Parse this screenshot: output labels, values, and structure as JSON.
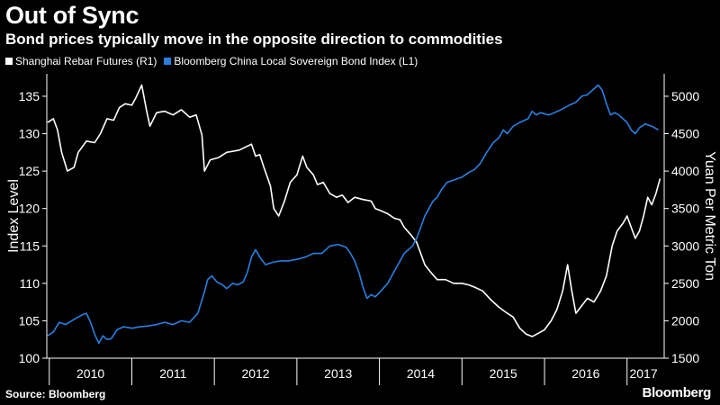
{
  "header": {
    "title": "Out of Sync",
    "subtitle": "Bond prices typically move in the opposite direction to commodities"
  },
  "footer": {
    "source": "Source: Bloomberg",
    "brand": "Bloomberg"
  },
  "colors": {
    "background": "#000000",
    "rebar": "#ffffff",
    "bond": "#2a7fe0",
    "axis": "#ffffff"
  },
  "chart_data": {
    "type": "line",
    "title": "Out of Sync",
    "subtitle": "Bond prices typically move in the opposite direction to commodities",
    "ylabel": "Index Level",
    "y2label": "Yuan Per Metric Ton",
    "ylim": [
      100,
      138
    ],
    "y2lim": [
      1500,
      5300
    ],
    "xlim": [
      2009.97,
      2017.45
    ],
    "yticks": [
      100,
      105,
      110,
      115,
      120,
      125,
      130,
      135
    ],
    "y2ticks": [
      1500,
      2000,
      2500,
      3000,
      3500,
      4000,
      4500,
      5000
    ],
    "xticks": [
      {
        "label": "2010",
        "pos": 2010.5,
        "sep": 2010.0
      },
      {
        "label": "2011",
        "pos": 2011.5,
        "sep": 2011.0
      },
      {
        "label": "2012",
        "pos": 2012.5,
        "sep": 2012.0
      },
      {
        "label": "2013",
        "pos": 2013.5,
        "sep": 2013.0
      },
      {
        "label": "2014",
        "pos": 2014.5,
        "sep": 2014.0
      },
      {
        "label": "2015",
        "pos": 2015.5,
        "sep": 2015.0
      },
      {
        "label": "2016",
        "pos": 2016.5,
        "sep": 2016.0
      },
      {
        "label": "2017",
        "pos": 2017.2,
        "sep": 2017.0
      }
    ],
    "series": [
      {
        "name": "Shanghai Rebar Futures (R1)",
        "axis": "right",
        "legend_label": "Shanghai Rebar Futures (R1)",
        "points": [
          [
            2009.98,
            4650
          ],
          [
            2010.05,
            4700
          ],
          [
            2010.1,
            4550
          ],
          [
            2010.15,
            4250
          ],
          [
            2010.22,
            4000
          ],
          [
            2010.3,
            4050
          ],
          [
            2010.35,
            4250
          ],
          [
            2010.45,
            4400
          ],
          [
            2010.55,
            4380
          ],
          [
            2010.62,
            4500
          ],
          [
            2010.7,
            4700
          ],
          [
            2010.78,
            4680
          ],
          [
            2010.85,
            4850
          ],
          [
            2010.92,
            4900
          ],
          [
            2011.0,
            4880
          ],
          [
            2011.05,
            4980
          ],
          [
            2011.12,
            5150
          ],
          [
            2011.18,
            4800
          ],
          [
            2011.22,
            4600
          ],
          [
            2011.3,
            4780
          ],
          [
            2011.4,
            4800
          ],
          [
            2011.5,
            4750
          ],
          [
            2011.6,
            4820
          ],
          [
            2011.7,
            4720
          ],
          [
            2011.78,
            4750
          ],
          [
            2011.85,
            4480
          ],
          [
            2011.88,
            4000
          ],
          [
            2011.95,
            4150
          ],
          [
            2012.05,
            4180
          ],
          [
            2012.15,
            4250
          ],
          [
            2012.3,
            4280
          ],
          [
            2012.45,
            4360
          ],
          [
            2012.5,
            4200
          ],
          [
            2012.55,
            4220
          ],
          [
            2012.6,
            4050
          ],
          [
            2012.68,
            3800
          ],
          [
            2012.72,
            3500
          ],
          [
            2012.78,
            3400
          ],
          [
            2012.85,
            3600
          ],
          [
            2012.92,
            3850
          ],
          [
            2013.0,
            3950
          ],
          [
            2013.07,
            4200
          ],
          [
            2013.12,
            4050
          ],
          [
            2013.2,
            3950
          ],
          [
            2013.25,
            3820
          ],
          [
            2013.32,
            3850
          ],
          [
            2013.4,
            3700
          ],
          [
            2013.48,
            3650
          ],
          [
            2013.55,
            3680
          ],
          [
            2013.62,
            3580
          ],
          [
            2013.7,
            3650
          ],
          [
            2013.8,
            3620
          ],
          [
            2013.9,
            3600
          ],
          [
            2013.95,
            3500
          ],
          [
            2014.02,
            3470
          ],
          [
            2014.1,
            3430
          ],
          [
            2014.18,
            3370
          ],
          [
            2014.25,
            3350
          ],
          [
            2014.3,
            3250
          ],
          [
            2014.38,
            3150
          ],
          [
            2014.45,
            3050
          ],
          [
            2014.5,
            2900
          ],
          [
            2014.55,
            2750
          ],
          [
            2014.62,
            2650
          ],
          [
            2014.7,
            2550
          ],
          [
            2014.8,
            2550
          ],
          [
            2014.9,
            2500
          ],
          [
            2015.0,
            2500
          ],
          [
            2015.08,
            2480
          ],
          [
            2015.15,
            2450
          ],
          [
            2015.25,
            2400
          ],
          [
            2015.35,
            2280
          ],
          [
            2015.45,
            2180
          ],
          [
            2015.55,
            2100
          ],
          [
            2015.62,
            2050
          ],
          [
            2015.7,
            1900
          ],
          [
            2015.78,
            1820
          ],
          [
            2015.85,
            1790
          ],
          [
            2015.92,
            1830
          ],
          [
            2016.0,
            1880
          ],
          [
            2016.08,
            2000
          ],
          [
            2016.15,
            2150
          ],
          [
            2016.22,
            2400
          ],
          [
            2016.28,
            2750
          ],
          [
            2016.33,
            2400
          ],
          [
            2016.38,
            2100
          ],
          [
            2016.45,
            2200
          ],
          [
            2016.52,
            2300
          ],
          [
            2016.6,
            2250
          ],
          [
            2016.68,
            2400
          ],
          [
            2016.75,
            2600
          ],
          [
            2016.82,
            3000
          ],
          [
            2016.88,
            3200
          ],
          [
            2016.95,
            3300
          ],
          [
            2017.0,
            3400
          ],
          [
            2017.05,
            3250
          ],
          [
            2017.1,
            3100
          ],
          [
            2017.15,
            3200
          ],
          [
            2017.2,
            3400
          ],
          [
            2017.25,
            3650
          ],
          [
            2017.3,
            3550
          ],
          [
            2017.35,
            3700
          ],
          [
            2017.4,
            3900
          ]
        ]
      },
      {
        "name": "Bloomberg China Local Sovereign Bond Index (L1)",
        "axis": "left",
        "legend_label": "Bloomberg China Local Sovereign Bond Index (L1)",
        "points": [
          [
            2009.98,
            103.0
          ],
          [
            2010.05,
            103.5
          ],
          [
            2010.12,
            104.8
          ],
          [
            2010.2,
            104.5
          ],
          [
            2010.3,
            105.2
          ],
          [
            2010.4,
            105.8
          ],
          [
            2010.45,
            106.0
          ],
          [
            2010.5,
            104.8
          ],
          [
            2010.55,
            103.2
          ],
          [
            2010.6,
            102.0
          ],
          [
            2010.65,
            103.0
          ],
          [
            2010.7,
            102.5
          ],
          [
            2010.75,
            102.6
          ],
          [
            2010.82,
            103.8
          ],
          [
            2010.9,
            104.2
          ],
          [
            2011.0,
            104.0
          ],
          [
            2011.1,
            104.2
          ],
          [
            2011.2,
            104.3
          ],
          [
            2011.3,
            104.5
          ],
          [
            2011.4,
            104.8
          ],
          [
            2011.5,
            104.5
          ],
          [
            2011.6,
            105.0
          ],
          [
            2011.7,
            104.8
          ],
          [
            2011.8,
            106.0
          ],
          [
            2011.87,
            108.5
          ],
          [
            2011.92,
            110.5
          ],
          [
            2011.97,
            111.0
          ],
          [
            2012.03,
            110.2
          ],
          [
            2012.1,
            109.8
          ],
          [
            2012.15,
            109.3
          ],
          [
            2012.22,
            110.0
          ],
          [
            2012.28,
            109.8
          ],
          [
            2012.35,
            110.2
          ],
          [
            2012.4,
            111.5
          ],
          [
            2012.45,
            113.5
          ],
          [
            2012.5,
            114.5
          ],
          [
            2012.55,
            113.5
          ],
          [
            2012.62,
            112.5
          ],
          [
            2012.7,
            112.8
          ],
          [
            2012.8,
            113.0
          ],
          [
            2012.9,
            113.0
          ],
          [
            2013.0,
            113.2
          ],
          [
            2013.1,
            113.5
          ],
          [
            2013.2,
            114.0
          ],
          [
            2013.3,
            114.0
          ],
          [
            2013.4,
            115.0
          ],
          [
            2013.5,
            115.2
          ],
          [
            2013.6,
            114.8
          ],
          [
            2013.65,
            114.0
          ],
          [
            2013.7,
            113.0
          ],
          [
            2013.75,
            111.5
          ],
          [
            2013.8,
            109.5
          ],
          [
            2013.85,
            108.0
          ],
          [
            2013.9,
            108.5
          ],
          [
            2013.95,
            108.2
          ],
          [
            2014.02,
            109.0
          ],
          [
            2014.1,
            110.0
          ],
          [
            2014.2,
            112.0
          ],
          [
            2014.3,
            114.0
          ],
          [
            2014.4,
            115.0
          ],
          [
            2014.45,
            116.0
          ],
          [
            2014.5,
            117.5
          ],
          [
            2014.55,
            119.0
          ],
          [
            2014.6,
            120.0
          ],
          [
            2014.65,
            121.0
          ],
          [
            2014.7,
            121.5
          ],
          [
            2014.75,
            122.5
          ],
          [
            2014.82,
            123.5
          ],
          [
            2014.9,
            123.8
          ],
          [
            2015.0,
            124.2
          ],
          [
            2015.08,
            124.8
          ],
          [
            2015.15,
            125.2
          ],
          [
            2015.22,
            126.0
          ],
          [
            2015.3,
            127.5
          ],
          [
            2015.38,
            128.8
          ],
          [
            2015.45,
            129.5
          ],
          [
            2015.5,
            130.5
          ],
          [
            2015.55,
            130.0
          ],
          [
            2015.62,
            131.0
          ],
          [
            2015.7,
            131.5
          ],
          [
            2015.8,
            132.0
          ],
          [
            2015.85,
            133.0
          ],
          [
            2015.9,
            132.5
          ],
          [
            2015.95,
            132.8
          ],
          [
            2016.05,
            132.5
          ],
          [
            2016.12,
            132.8
          ],
          [
            2016.2,
            133.2
          ],
          [
            2016.3,
            133.8
          ],
          [
            2016.38,
            134.2
          ],
          [
            2016.45,
            135.0
          ],
          [
            2016.52,
            135.2
          ],
          [
            2016.6,
            136.0
          ],
          [
            2016.65,
            136.5
          ],
          [
            2016.7,
            135.8
          ],
          [
            2016.75,
            134.0
          ],
          [
            2016.8,
            132.5
          ],
          [
            2016.85,
            132.8
          ],
          [
            2016.9,
            132.5
          ],
          [
            2017.0,
            131.5
          ],
          [
            2017.05,
            130.5
          ],
          [
            2017.1,
            130.0
          ],
          [
            2017.15,
            130.8
          ],
          [
            2017.22,
            131.3
          ],
          [
            2017.3,
            131.0
          ],
          [
            2017.38,
            130.5
          ]
        ]
      }
    ]
  }
}
